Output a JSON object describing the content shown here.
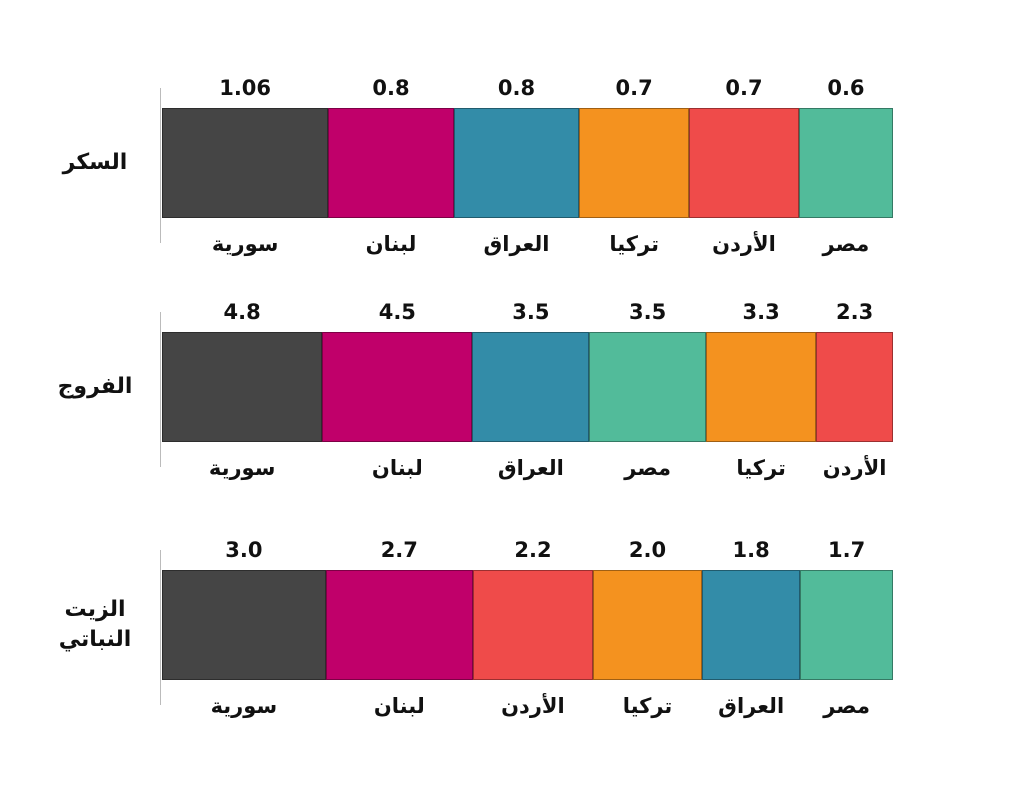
{
  "chart_data": [
    {
      "type": "bar",
      "title": "السكر",
      "categories": [
        "سورية",
        "لبنان",
        "العراق",
        "تركيا",
        "الأردن",
        "مصر"
      ],
      "values": [
        1.06,
        0.8,
        0.8,
        0.7,
        0.7,
        0.6
      ],
      "colors": [
        "#454545",
        "#c0006a",
        "#338ca8",
        "#f4921f",
        "#ef4b4a",
        "#52bb9a"
      ]
    },
    {
      "type": "bar",
      "title": "الفروج",
      "categories": [
        "سورية",
        "لبنان",
        "العراق",
        "مصر",
        "تركيا",
        "الأردن"
      ],
      "values": [
        4.8,
        4.5,
        3.5,
        3.5,
        3.3,
        2.3
      ],
      "colors": [
        "#454545",
        "#c0006a",
        "#338ca8",
        "#52bb9a",
        "#f4921f",
        "#ef4b4a"
      ]
    },
    {
      "type": "bar",
      "title": "الزيت النباتي",
      "categories": [
        "سورية",
        "لبنان",
        "الأردن",
        "تركيا",
        "العراق",
        "مصر"
      ],
      "values": [
        3.0,
        2.7,
        2.2,
        2.0,
        1.8,
        1.7
      ],
      "value_labels": [
        "3.0",
        "2.7",
        "2.2",
        "2.0",
        "1.8",
        "1.7"
      ],
      "colors": [
        "#454545",
        "#c0006a",
        "#ef4b4a",
        "#f4921f",
        "#338ca8",
        "#52bb9a"
      ]
    }
  ]
}
